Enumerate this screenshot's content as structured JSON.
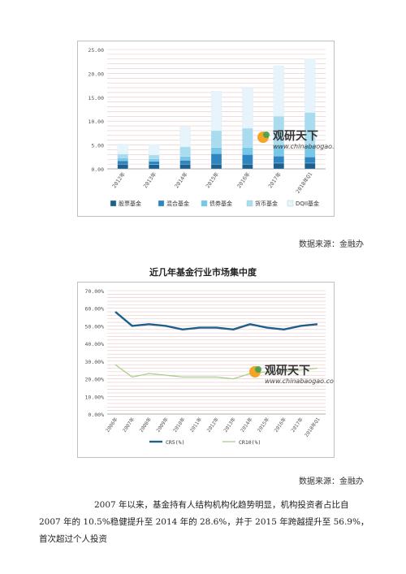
{
  "chart_data": [
    {
      "type": "bar",
      "stacked": true,
      "title": "",
      "xlabel": "",
      "ylabel": "",
      "ylim": [
        0,
        25
      ],
      "yticks": [
        "0.00",
        "5.00",
        "10.00",
        "15.00",
        "20.00",
        "25.00"
      ],
      "categories": [
        "2012年",
        "2013年",
        "2014年",
        "2015年",
        "2016年",
        "2017年",
        "2018年Q1"
      ],
      "series": [
        {
          "name": "股票基金",
          "color": "#1f5f8b",
          "values": [
            1.0,
            0.9,
            1.0,
            1.0,
            1.0,
            1.2,
            1.2
          ]
        },
        {
          "name": "混合基金",
          "color": "#2e86c1",
          "values": [
            0.7,
            0.7,
            0.8,
            2.2,
            2.0,
            1.5,
            1.3
          ]
        },
        {
          "name": "债券基金",
          "color": "#76c7e8",
          "values": [
            0.6,
            0.5,
            0.8,
            1.3,
            1.5,
            2.3,
            2.5
          ]
        },
        {
          "name": "货币基金",
          "color": "#a9dcef",
          "values": [
            0.8,
            0.8,
            2.0,
            3.5,
            4.0,
            6.0,
            6.8
          ]
        },
        {
          "name": "DQII基金",
          "color": "#e8f4fb",
          "values": [
            2.1,
            2.2,
            4.2,
            8.3,
            8.5,
            10.6,
            11.2
          ]
        }
      ],
      "grid": true,
      "legend": "bottom"
    },
    {
      "type": "line",
      "title": "近几年基金行业市场集中度",
      "xlabel": "",
      "ylabel": "",
      "ylim": [
        0,
        70
      ],
      "yticks": [
        "0.00%",
        "10.00%",
        "20.00%",
        "30.00%",
        "40.00%",
        "50.00%",
        "60.00%",
        "70.00%"
      ],
      "categories": [
        "2006年",
        "2007年",
        "2008年",
        "2009年",
        "2010年",
        "2011年",
        "2012年",
        "2013年",
        "2014年",
        "2015年",
        "2016年",
        "2017年",
        "2018年Q1"
      ],
      "series": [
        {
          "name": "CR5(%)",
          "color": "#1f5f8b",
          "values": [
            58,
            50,
            51,
            50,
            48,
            49,
            49,
            48,
            51,
            49,
            48,
            50,
            51
          ]
        },
        {
          "name": "CR10(%)",
          "color": "#a8d08d",
          "values": [
            28,
            21,
            23,
            22,
            21,
            21,
            21,
            20,
            23,
            24,
            24,
            25,
            26
          ]
        }
      ],
      "grid": true,
      "legend": "bottom"
    }
  ],
  "watermark": {
    "brand": "观研天下",
    "url": "www.chinabaogao.com"
  },
  "source1": "数据来源：金融办",
  "source2": "数据来源：金融办",
  "paragraph": "2007 年以来，基金持有人结构机构化趋势明显，机构投资者占比自 2007 年的 10.5%稳健提升至 2014 年的 28.6%，并于 2015 年跨越提升至 56.9%，首次超过个人投资"
}
